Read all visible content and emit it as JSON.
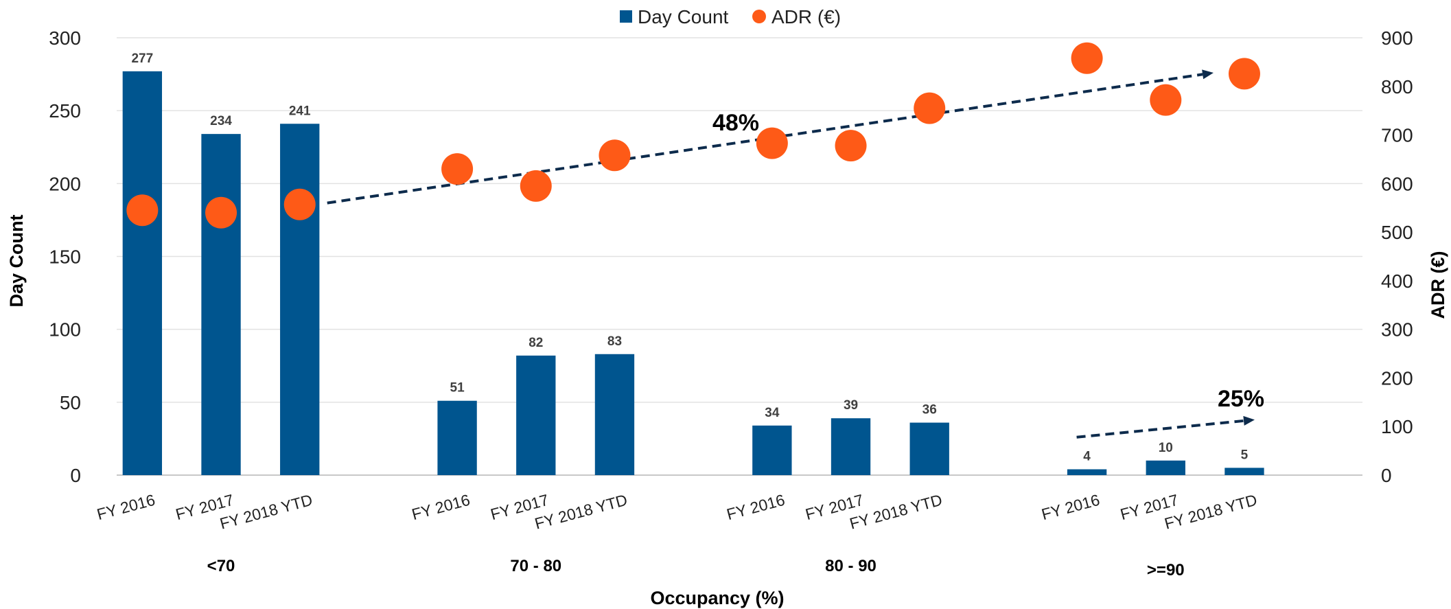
{
  "chart_data": {
    "type": "bar",
    "title": "",
    "categories": [
      "FY 2016",
      "FY 2017",
      "FY 2018 YTD",
      "FY 2016",
      "FY 2017",
      "FY 2018 YTD",
      "FY 2016",
      "FY 2017",
      "FY 2018 YTD",
      "FY 2016",
      "FY 2017",
      "FY 2018 YTD"
    ],
    "groups": [
      {
        "label": "<70"
      },
      {
        "label": "70 - 80"
      },
      {
        "label": "80 - 90"
      },
      {
        "label": ">=90"
      }
    ],
    "series": [
      {
        "name": "Day Count",
        "type": "bar",
        "axis": "left",
        "color": "#00558f",
        "values": [
          277,
          234,
          241,
          51,
          82,
          83,
          34,
          39,
          36,
          4,
          10,
          5
        ]
      },
      {
        "name": "ADR (€)",
        "type": "scatter",
        "axis": "right",
        "color": "#fe5a17",
        "values": [
          545,
          540,
          557,
          630,
          595,
          658,
          683,
          678,
          755,
          858,
          772,
          826
        ]
      }
    ],
    "xlabel": "Occupancy (%)",
    "ylabel": "Day Count",
    "y2label": "ADR (€)",
    "ylim": [
      0,
      300
    ],
    "y2lim": [
      0,
      900
    ],
    "yticks": [
      0,
      50,
      100,
      150,
      200,
      250,
      300
    ],
    "y2ticks": [
      0,
      100,
      200,
      300,
      400,
      500,
      600,
      700,
      800,
      900
    ],
    "grid": true,
    "legend": "top-center",
    "annotations": [
      {
        "text": "48%",
        "type": "dashed-arrow",
        "from_category": "<70 FY 2018 YTD",
        "to_category": ">=90 FY 2018 YTD",
        "from_adr": 560,
        "to_adr": 828,
        "color": "#0d2b4c"
      },
      {
        "text": "25%",
        "type": "dashed-arrow",
        "from_category": ">=90 FY 2016",
        "to_category": ">=90 FY 2018 YTD",
        "from_daycount": 26,
        "to_daycount": 38,
        "color": "#0d2b4c"
      }
    ]
  }
}
